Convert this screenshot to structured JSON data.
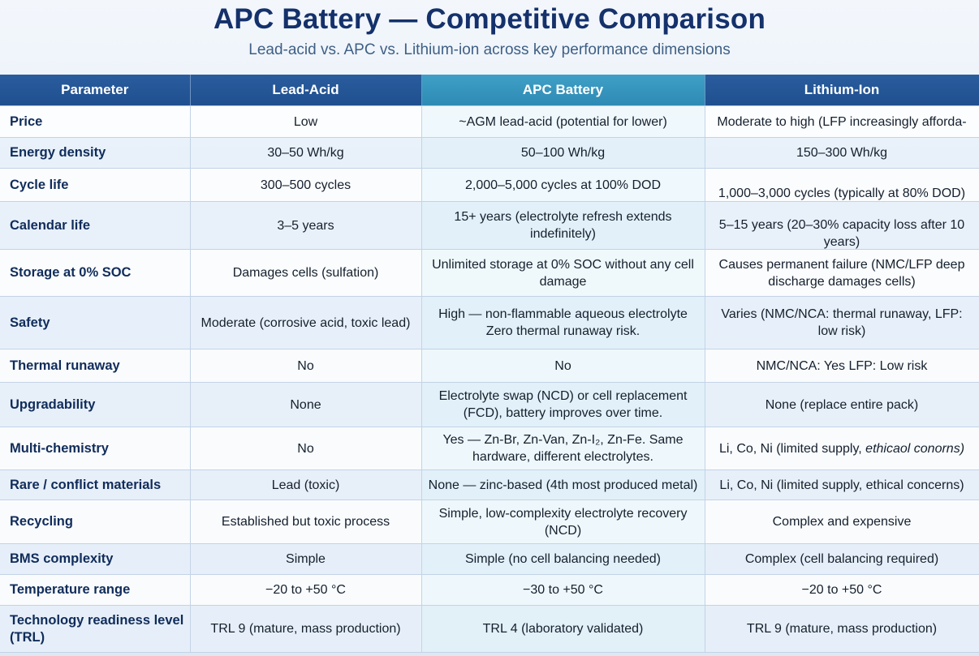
{
  "title": "APC Battery — Competitive Comparison",
  "subtitle": "Lead-acid vs. APC vs. Lithium-ion across key performance dimensions",
  "columns": [
    "Parameter",
    "Lead-Acid",
    "APC Battery",
    "Lithium-Ion"
  ],
  "rows": [
    {
      "parameter": "Price",
      "lead_acid": "Low",
      "apc": "~AGM lead-acid (potential for lower)",
      "lithium": "Moderate to high (LFP increasingly afforda-"
    },
    {
      "parameter": "Energy density",
      "lead_acid": "30–50 Wh/kg",
      "apc": "50–100 Wh/kg",
      "lithium": "150–300 Wh/kg"
    },
    {
      "parameter": "Cycle life",
      "lead_acid": "300–500 cycles",
      "apc": "2,000–5,000 cycles at 100% DOD",
      "lithium": "1,000–3,000 cycles (typically at 80% DOD)"
    },
    {
      "parameter": "Calendar life",
      "lead_acid": "3–5 years",
      "apc": "15+ years (electrolyte refresh extends indefinitely)",
      "lithium": "5–15 years (20–30% capacity loss after 10 years)"
    },
    {
      "parameter": "Storage at 0% SOC",
      "lead_acid": "Damages cells (sulfation)",
      "apc": "Unlimited storage at 0% SOC without any cell damage",
      "lithium": "Causes permanent failure (NMC/LFP deep discharge damages cells)"
    },
    {
      "parameter": "Safety",
      "lead_acid": "Moderate (corrosive acid, toxic lead)",
      "apc": "High — non-flammable aqueous electrolyte Zero thermal runaway risk.",
      "lithium": "Varies (NMC/NCA: thermal runaway, LFP: low risk)"
    },
    {
      "parameter": "Thermal runaway",
      "lead_acid": "No",
      "apc": "No",
      "lithium": "NMC/NCA: Yes LFP: Low risk"
    },
    {
      "parameter": "Upgradability",
      "lead_acid": "None",
      "apc": "Electrolyte swap (NCD) or cell replacement (FCD), battery improves over time.",
      "lithium": "None (replace entire pack)"
    },
    {
      "parameter": "Multi-chemistry",
      "lead_acid": "No",
      "apc": "Yes — Zn-Br, Zn-Van, Zn-I₂, Zn-Fe. Same hardware, different electrolytes.",
      "lithium": "Li, Co, Ni (limited supply, ",
      "lithium_italic": "ethicaol conorns)"
    },
    {
      "parameter": "Rare / conflict materials",
      "lead_acid": "Lead (toxic)",
      "apc": "None — zinc-based (4th most produced metal)",
      "lithium": "Li, Co, Ni (limited supply, ethical concerns)"
    },
    {
      "parameter": "Recycling",
      "lead_acid": "Established but toxic process",
      "apc": "Simple, low-complexity electrolyte recovery (NCD)",
      "lithium": "Complex and expensive"
    },
    {
      "parameter": "BMS complexity",
      "lead_acid": "Simple",
      "apc": "Simple (no cell balancing needed)",
      "lithium": "Complex (cell balancing required)"
    },
    {
      "parameter": "Temperature range",
      "lead_acid": "−20 to +50 °C",
      "apc": "−30 to +50 °C",
      "lithium": "−20 to +50 °C"
    },
    {
      "parameter": "Technology readiness level (TRL)",
      "lead_acid": "TRL 9 (mature, mass production)",
      "apc": "TRL 4 (laboratory validated)",
      "lithium": "TRL 9 (mature, mass production)"
    }
  ],
  "calendar_life_lithium_parts": [
    "1,000–3,000 cycles (typically at 80% DOD)",
    "5–15 years (20–30% capacity loss after 10 years)"
  ]
}
